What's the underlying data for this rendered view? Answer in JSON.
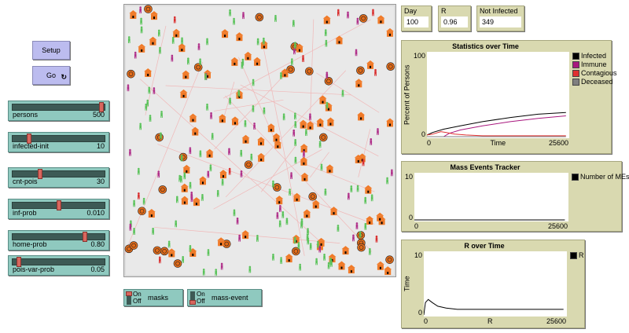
{
  "buttons": {
    "setup": "Setup",
    "go": "Go"
  },
  "sliders": [
    {
      "label": "persons",
      "value": "500",
      "fraction": 0.98
    },
    {
      "label": "infected-init",
      "value": "10",
      "fraction": 0.17
    },
    {
      "label": "cnt-pois",
      "value": "30",
      "fraction": 0.29
    },
    {
      "label": "inf-prob",
      "value": "0.010",
      "fraction": 0.5
    },
    {
      "label": "home-prob",
      "value": "0.80",
      "fraction": 0.8
    },
    {
      "label": "pois-var-prob",
      "value": "0.05",
      "fraction": 0.05
    }
  ],
  "switches": [
    {
      "label": "masks",
      "on_label": "On",
      "off_label": "Off",
      "state": "on"
    },
    {
      "label": "mass-event",
      "on_label": "On",
      "off_label": "Off",
      "state": "off"
    }
  ],
  "monitors": [
    {
      "label": "Day",
      "value": "100"
    },
    {
      "label": "R",
      "value": "0.96"
    },
    {
      "label": "Not Infected",
      "value": "349"
    }
  ],
  "colors": {
    "house": "#f07a28",
    "poi": "#e36c1a",
    "healthy": "#5bc35b",
    "immune": "#b0308a",
    "contagious": "#d93030"
  },
  "chart_data": [
    {
      "type": "line",
      "title": "Statistics over Time",
      "xlabel": "Time",
      "ylabel": "Percent of Persons",
      "xlim": [
        0,
        25600
      ],
      "ylim": [
        0,
        100
      ],
      "xticks": [
        "0",
        "25600"
      ],
      "yticks": [
        "0",
        "100"
      ],
      "legend": "right",
      "series": [
        {
          "name": "Infected",
          "color": "#000000",
          "x": [
            0,
            1000,
            3000,
            6000,
            10000,
            15000,
            20000,
            25000
          ],
          "y": [
            2,
            5,
            9,
            13,
            18,
            23,
            27,
            29
          ]
        },
        {
          "name": "Immune",
          "color": "#a8177e",
          "x": [
            0,
            3000,
            4000,
            6000,
            10000,
            15000,
            20000,
            25000
          ],
          "y": [
            0,
            0,
            4,
            8,
            13,
            18,
            22,
            25
          ]
        },
        {
          "name": "Contagious",
          "color": "#e03030",
          "x": [
            0,
            1000,
            2500,
            3500,
            5000,
            7000,
            10000,
            25000
          ],
          "y": [
            2,
            3,
            6,
            5,
            3,
            2,
            1,
            1
          ]
        },
        {
          "name": "Deceased",
          "color": "#808080",
          "x": [
            0,
            25000
          ],
          "y": [
            0,
            0
          ]
        }
      ]
    },
    {
      "type": "line",
      "title": "Mass Events Tracker",
      "xlabel": "",
      "ylabel": "",
      "xlim": [
        0,
        25600
      ],
      "ylim": [
        0,
        10
      ],
      "xticks": [
        "0",
        "25600"
      ],
      "yticks": [
        "0",
        "10"
      ],
      "legend": "right",
      "series": [
        {
          "name": "Number of MEs",
          "color": "#000000",
          "x": [
            0,
            25000
          ],
          "y": [
            0,
            0
          ]
        }
      ]
    },
    {
      "type": "line",
      "title": "R over Time",
      "xlabel": "R",
      "ylabel": "Time",
      "xlim": [
        0,
        25600
      ],
      "ylim": [
        0,
        10
      ],
      "xticks": [
        "0",
        "25600"
      ],
      "yticks": [
        "0",
        "10"
      ],
      "legend": "right",
      "series": [
        {
          "name": "R",
          "color": "#000000",
          "x": [
            0,
            300,
            800,
            1500,
            2500,
            4000,
            6000,
            10000,
            25000
          ],
          "y": [
            0,
            2,
            2.5,
            2,
            1.4,
            1.1,
            0.9,
            0.9,
            0.9
          ]
        }
      ]
    }
  ]
}
